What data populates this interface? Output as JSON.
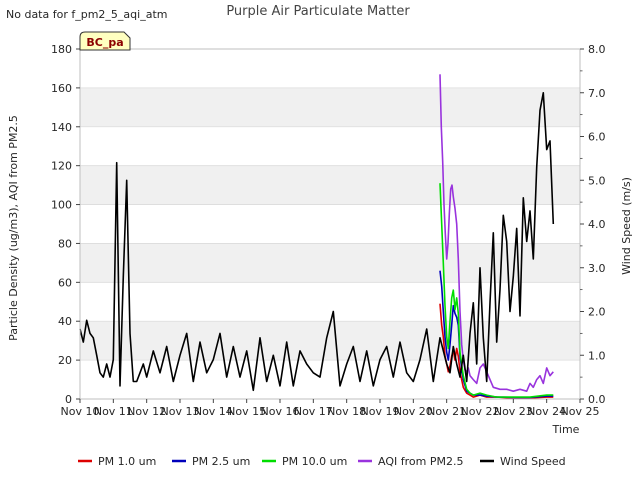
{
  "note": "No data for f_pm2_5_aqi_atm",
  "chart_data": {
    "type": "line",
    "title": "Purple Air Particulate Matter",
    "badge": "BC_pa",
    "xlabel": "Time",
    "ylabel": "Particle Density (ug/m3), AQI from PM2.5",
    "y2label": "Wind Speed (m/s)",
    "xlim": [
      10,
      25
    ],
    "ylim": [
      0,
      180
    ],
    "y2lim": [
      0,
      8
    ],
    "x_ticks": [
      10,
      11,
      12,
      13,
      14,
      15,
      16,
      17,
      18,
      19,
      20,
      21,
      22,
      23,
      24,
      25
    ],
    "x_tick_labels": [
      "Nov 10",
      "Nov 11",
      "Nov 12",
      "Nov 13",
      "Nov 14",
      "Nov 15",
      "Nov 16",
      "Nov 17",
      "Nov 18",
      "Nov 19",
      "Nov 20",
      "Nov 21",
      "Nov 22",
      "Nov 23",
      "Nov 24",
      "Nov 25"
    ],
    "y_ticks": [
      0,
      20,
      40,
      60,
      80,
      100,
      120,
      140,
      160,
      180
    ],
    "y2_ticks": [
      0.0,
      1.0,
      2.0,
      3.0,
      4.0,
      5.0,
      6.0,
      7.0,
      8.0
    ],
    "y2_tick_labels": [
      "0.0",
      "1.0",
      "2.0",
      "3.0",
      "4.0",
      "5.0",
      "6.0",
      "7.0",
      "8.0"
    ],
    "legend": [
      {
        "label": "PM 1.0 um",
        "color": "#dd0000"
      },
      {
        "label": "PM 2.5 um",
        "color": "#0000bb"
      },
      {
        "label": "PM 10.0 um",
        "color": "#00dd00"
      },
      {
        "label": "AQI from PM2.5",
        "color": "#9933dd"
      },
      {
        "label": "Wind Speed",
        "color": "#000000"
      }
    ],
    "series": [
      {
        "name": "PM 1.0 um",
        "axis": "left",
        "color": "#dd0000",
        "x": [
          20.8,
          20.85,
          20.9,
          20.95,
          21.0,
          21.05,
          21.1,
          21.15,
          21.2,
          21.25,
          21.3,
          21.35,
          21.4,
          21.5,
          21.6,
          21.7,
          21.8,
          22.0,
          22.2,
          22.5,
          23.0,
          23.5,
          24.0,
          24.2
        ],
        "y": [
          49,
          38,
          32,
          22,
          18,
          14,
          17,
          22,
          25,
          20,
          26,
          22,
          14,
          6,
          3,
          2,
          1,
          2,
          1,
          1,
          0.5,
          0.5,
          1,
          1
        ]
      },
      {
        "name": "PM 2.5 um",
        "axis": "left",
        "color": "#0000bb",
        "x": [
          20.8,
          20.85,
          20.9,
          20.95,
          21.0,
          21.05,
          21.1,
          21.15,
          21.2,
          21.25,
          21.3,
          21.35,
          21.4,
          21.5,
          21.6,
          21.7,
          21.8,
          22.0,
          22.2,
          22.5,
          23.0,
          23.5,
          24.0,
          24.2
        ],
        "y": [
          66,
          58,
          45,
          32,
          24,
          20,
          28,
          38,
          48,
          44,
          42,
          38,
          22,
          10,
          4,
          3,
          2,
          2,
          1.5,
          1,
          0.8,
          0.8,
          1.5,
          1.5
        ]
      },
      {
        "name": "PM 10.0 um",
        "axis": "left",
        "color": "#00dd00",
        "x": [
          20.8,
          20.85,
          20.9,
          20.95,
          21.0,
          21.05,
          21.1,
          21.15,
          21.2,
          21.25,
          21.3,
          21.35,
          21.4,
          21.5,
          21.6,
          21.7,
          21.8,
          22.0,
          22.2,
          22.5,
          23.0,
          23.5,
          24.0,
          24.2
        ],
        "y": [
          111,
          90,
          70,
          48,
          32,
          26,
          40,
          52,
          56,
          46,
          52,
          44,
          24,
          12,
          5,
          3,
          2,
          3,
          2,
          1,
          1,
          1,
          2,
          2
        ]
      },
      {
        "name": "AQI from PM2.5",
        "axis": "left",
        "color": "#9933dd",
        "x": [
          20.8,
          20.84,
          20.88,
          20.92,
          20.96,
          21.0,
          21.04,
          21.08,
          21.12,
          21.16,
          21.2,
          21.25,
          21.3,
          21.35,
          21.4,
          21.45,
          21.5,
          21.55,
          21.6,
          21.65,
          21.7,
          21.8,
          21.9,
          22.0,
          22.1,
          22.2,
          22.4,
          22.6,
          22.8,
          23.0,
          23.2,
          23.4,
          23.5,
          23.6,
          23.7,
          23.8,
          23.9,
          24.0,
          24.1,
          24.2
        ],
        "y": [
          167,
          140,
          122,
          100,
          85,
          72,
          80,
          95,
          108,
          110,
          104,
          98,
          90,
          72,
          45,
          28,
          20,
          15,
          14,
          16,
          12,
          10,
          8,
          16,
          18,
          14,
          6,
          5,
          5,
          4,
          5,
          4,
          8,
          6,
          10,
          12,
          8,
          16,
          12,
          14
        ]
      },
      {
        "name": "Wind Speed",
        "axis": "right",
        "color": "#000000",
        "x": [
          10.0,
          10.1,
          10.2,
          10.3,
          10.4,
          10.5,
          10.6,
          10.7,
          10.8,
          10.9,
          11.0,
          11.1,
          11.2,
          11.3,
          11.4,
          11.5,
          11.6,
          11.7,
          11.8,
          11.9,
          12.0,
          12.2,
          12.4,
          12.6,
          12.8,
          13.0,
          13.2,
          13.4,
          13.6,
          13.8,
          14.0,
          14.2,
          14.4,
          14.6,
          14.8,
          15.0,
          15.2,
          15.4,
          15.6,
          15.8,
          16.0,
          16.2,
          16.4,
          16.6,
          16.8,
          17.0,
          17.2,
          17.4,
          17.6,
          17.8,
          18.0,
          18.2,
          18.4,
          18.6,
          18.8,
          19.0,
          19.2,
          19.4,
          19.6,
          19.8,
          20.0,
          20.2,
          20.4,
          20.6,
          20.8,
          21.0,
          21.1,
          21.2,
          21.3,
          21.4,
          21.5,
          21.6,
          21.7,
          21.8,
          21.9,
          22.0,
          22.1,
          22.2,
          22.3,
          22.4,
          22.5,
          22.6,
          22.7,
          22.8,
          22.9,
          23.0,
          23.1,
          23.2,
          23.3,
          23.4,
          23.5,
          23.6,
          23.7,
          23.8,
          23.9,
          24.0,
          24.1,
          24.2
        ],
        "y": [
          1.6,
          1.3,
          1.8,
          1.5,
          1.4,
          1.0,
          0.6,
          0.5,
          0.8,
          0.5,
          0.9,
          5.4,
          0.3,
          2.8,
          5.0,
          1.5,
          0.4,
          0.4,
          0.6,
          0.8,
          0.5,
          1.1,
          0.6,
          1.2,
          0.4,
          1.0,
          1.5,
          0.4,
          1.3,
          0.6,
          0.9,
          1.5,
          0.5,
          1.2,
          0.5,
          1.1,
          0.2,
          1.4,
          0.4,
          1.0,
          0.3,
          1.3,
          0.3,
          1.1,
          0.8,
          0.6,
          0.5,
          1.4,
          2.0,
          0.3,
          0.8,
          1.2,
          0.4,
          1.1,
          0.3,
          0.9,
          1.2,
          0.5,
          1.3,
          0.6,
          0.4,
          0.9,
          1.6,
          0.4,
          1.4,
          0.8,
          0.6,
          1.2,
          0.8,
          0.5,
          1.0,
          0.4,
          1.5,
          2.2,
          0.8,
          3.0,
          1.4,
          0.4,
          2.2,
          3.8,
          1.3,
          2.5,
          4.2,
          3.6,
          2.0,
          2.8,
          3.9,
          1.9,
          4.6,
          3.6,
          4.3,
          3.2,
          5.3,
          6.6,
          7.0,
          5.7,
          5.9,
          4.0
        ]
      }
    ]
  }
}
